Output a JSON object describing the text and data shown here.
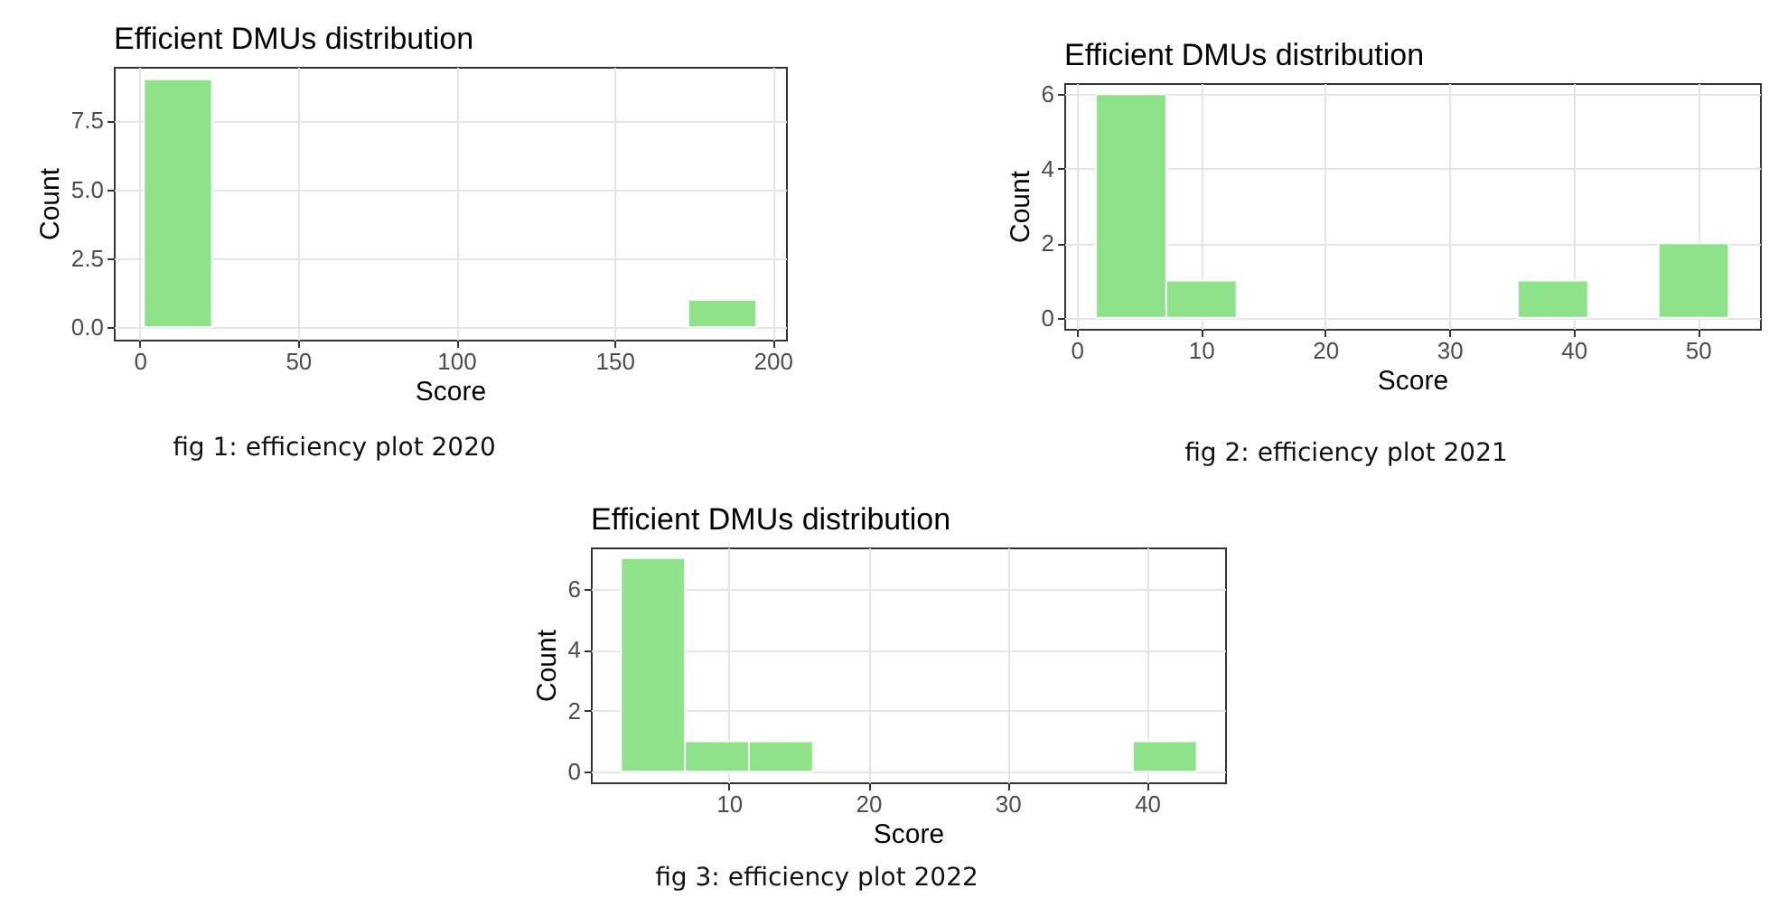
{
  "chart_data": [
    {
      "type": "histogram",
      "title": "Efficient DMUs distribution",
      "xlabel": "Score",
      "ylabel": "Count",
      "annotations": [
        "fig 1: efficiency plot 2020"
      ],
      "color": "#8ee38a",
      "grid": true,
      "bins": [
        1.3,
        22.8,
        44.3,
        65.8,
        87.3,
        108.8,
        130.3,
        151.8,
        173.3,
        194.8
      ],
      "values": [
        9,
        0,
        0,
        0,
        0,
        0,
        0,
        0,
        1
      ],
      "xlim": [
        -8.2,
        204.2
      ],
      "xticks": [
        0,
        50,
        100,
        150,
        200
      ],
      "ylim": [
        -0.45,
        9.45
      ],
      "yticks": [
        {
          "value": 0,
          "label": "0.0"
        },
        {
          "value": 2.5,
          "label": "2.5"
        },
        {
          "value": 5,
          "label": "5.0"
        },
        {
          "value": 7.5,
          "label": "7.5"
        }
      ]
    },
    {
      "type": "histogram",
      "title": "Efficient DMUs distribution",
      "xlabel": "Score",
      "ylabel": "Count",
      "annotations": [
        "fig 2: efficiency plot 2021"
      ],
      "color": "#8ee38a",
      "grid": true,
      "bins": [
        1.55,
        7.21,
        12.87,
        18.53,
        24.19,
        29.85,
        35.51,
        41.17,
        46.83,
        52.49
      ],
      "values": [
        6,
        1,
        0,
        0,
        0,
        0,
        1,
        0,
        2
      ],
      "xlim": [
        -1,
        55
      ],
      "xticks": [
        0,
        10,
        20,
        30,
        40,
        50
      ],
      "ylim": [
        -0.3,
        6.3
      ],
      "yticks": [
        0,
        2,
        4,
        6
      ]
    },
    {
      "type": "histogram",
      "title": "Efficient DMUs distribution",
      "xlabel": "Score",
      "ylabel": "Count",
      "annotations": [
        "fig 3: efficiency plot 2022"
      ],
      "color": "#8ee38a",
      "grid": true,
      "bins": [
        2.26,
        6.85,
        11.44,
        16.03,
        20.62,
        25.21,
        29.8,
        34.39,
        38.98,
        43.57
      ],
      "values": [
        7,
        1,
        1,
        0,
        0,
        0,
        0,
        0,
        1
      ],
      "xlim": [
        0.1,
        45.6
      ],
      "xticks": [
        10,
        20,
        30,
        40
      ],
      "ylim": [
        -0.35,
        7.35
      ],
      "yticks": [
        0,
        2,
        4,
        6
      ]
    }
  ]
}
